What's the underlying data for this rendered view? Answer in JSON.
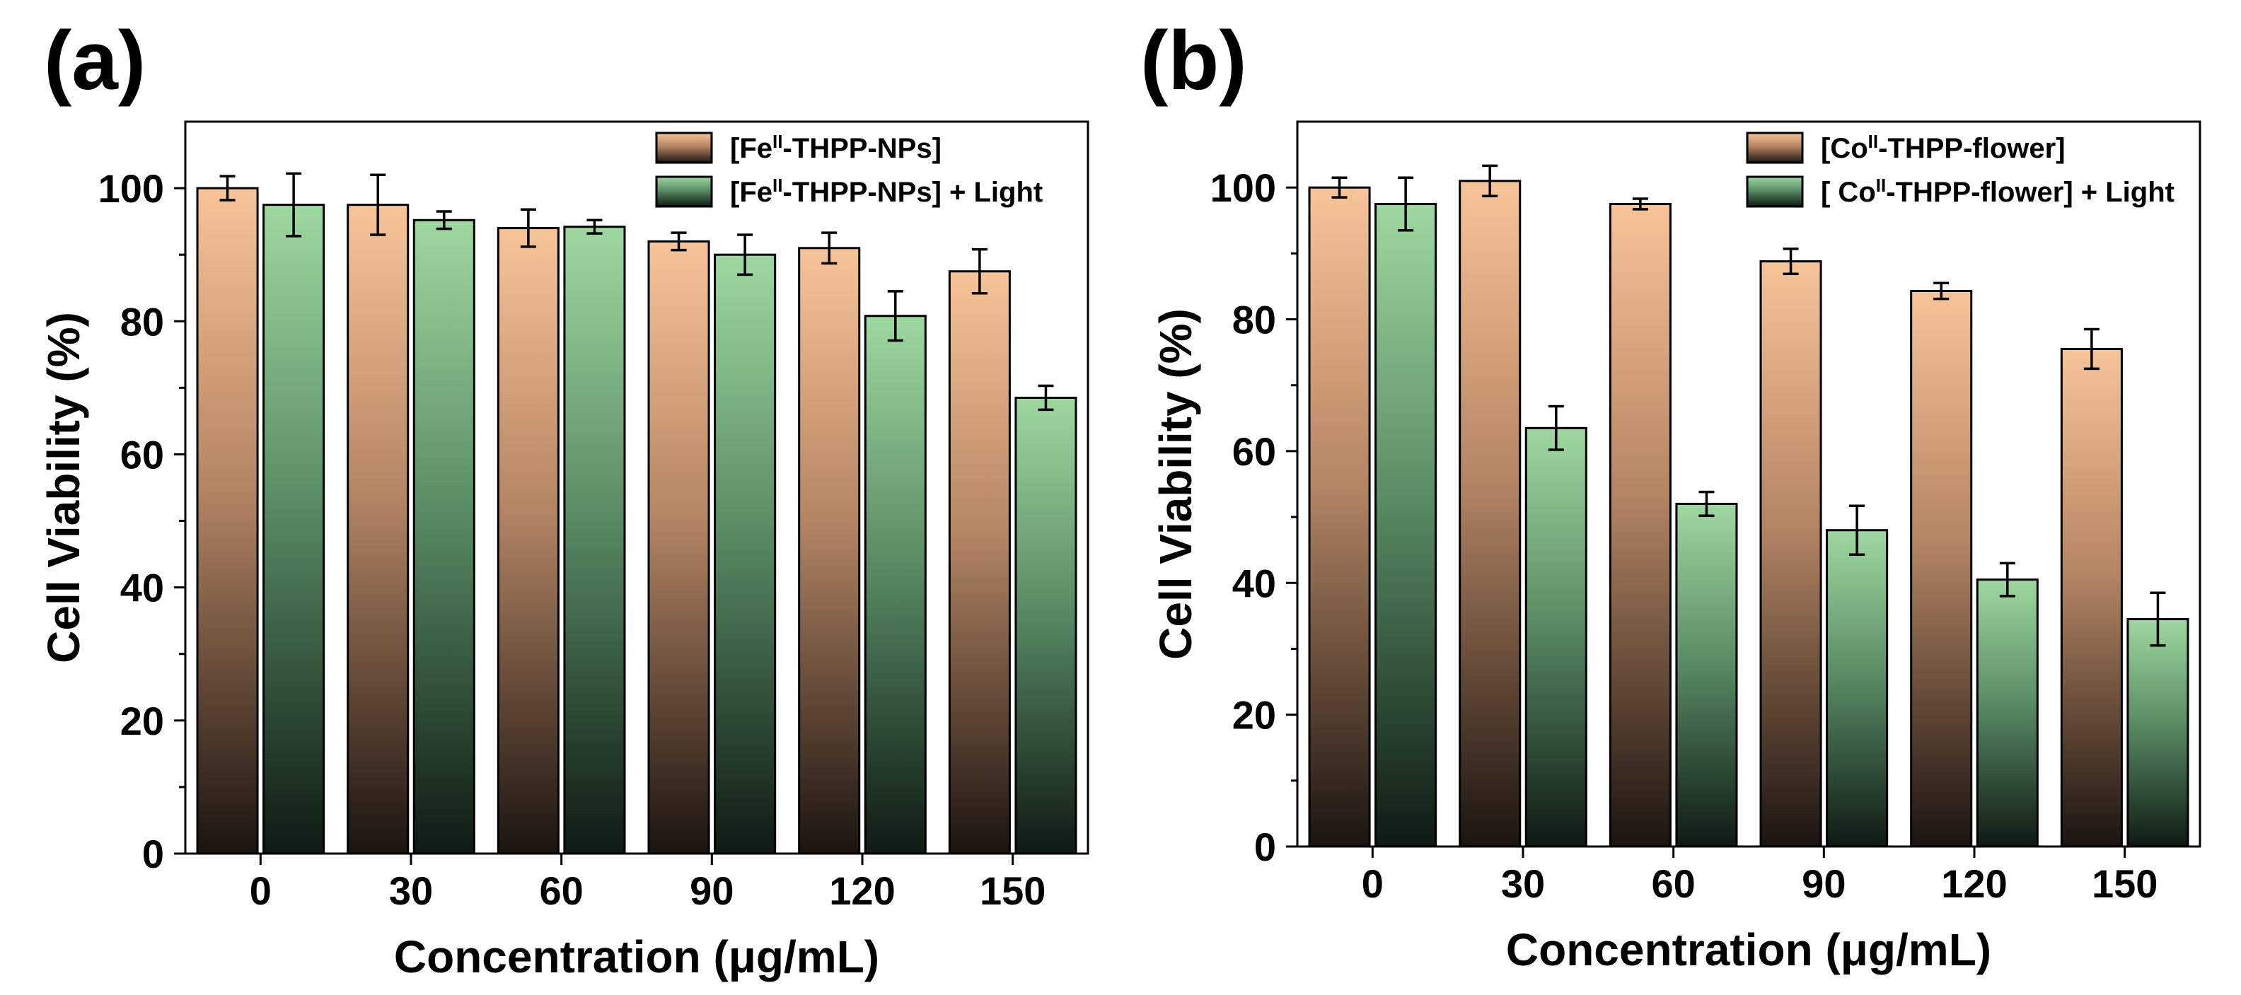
{
  "chart_data": [
    {
      "panel_label": "(a)",
      "type": "bar",
      "categories": [
        "0",
        "30",
        "60",
        "90",
        "120",
        "150"
      ],
      "xlabel": "Concentration (μg/mL)",
      "ylabel": "Cell Viability (%)",
      "ylim": [
        0,
        110
      ],
      "yticks": [
        0,
        20,
        40,
        60,
        80,
        100
      ],
      "legend_position": "top-right",
      "series": [
        {
          "name": "[Feᴵᴵ-THPP-NPs]",
          "legend_base": "[Fe",
          "legend_sup": "II",
          "legend_rest": "-THPP-NPs]",
          "color_top": "#f7c499",
          "color_bottom": "#1a1410",
          "values": [
            100,
            97.5,
            94,
            92,
            91,
            87.5
          ],
          "errors": [
            1.8,
            4.5,
            2.8,
            1.3,
            2.3,
            3.3
          ]
        },
        {
          "name": "[Feᴵᴵ-THPP-NPs] + Light",
          "legend_base": "[Fe",
          "legend_sup": "II",
          "legend_rest": "-THPP-NPs] + Light",
          "color_top": "#9ed8a0",
          "color_bottom": "#0e1a12",
          "values": [
            97.5,
            95.2,
            94.2,
            90,
            80.8,
            68.5
          ],
          "errors": [
            4.7,
            1.3,
            1.0,
            3.0,
            3.7,
            1.8
          ]
        }
      ]
    },
    {
      "panel_label": "(b)",
      "type": "bar",
      "categories": [
        "0",
        "30",
        "60",
        "90",
        "120",
        "150"
      ],
      "xlabel": "Concentration (μg/mL)",
      "ylabel": "Cell Viability (%)",
      "ylim": [
        0,
        110
      ],
      "yticks": [
        0,
        20,
        40,
        60,
        80,
        100
      ],
      "legend_position": "top-right",
      "series": [
        {
          "name": "[Coᴵᴵ-THPP-flower]",
          "legend_base": "[Co",
          "legend_sup": "II",
          "legend_rest": "-THPP-flower]",
          "color_top": "#f7c499",
          "color_bottom": "#1a1410",
          "values": [
            100,
            101,
            97.5,
            88.8,
            84.3,
            75.5
          ],
          "errors": [
            1.5,
            2.3,
            0.8,
            1.9,
            1.2,
            3.0
          ]
        },
        {
          "name": "[ Coᴵᴵ-THPP-flower] + Light",
          "legend_base": "[ Co",
          "legend_sup": "II",
          "legend_rest": "-THPP-flower] + Light",
          "color_top": "#9ed8a0",
          "color_bottom": "#0e1a12",
          "values": [
            97.5,
            63.5,
            52,
            48,
            40.5,
            34.5
          ],
          "errors": [
            4.0,
            3.3,
            1.8,
            3.7,
            2.5,
            4.0
          ]
        }
      ]
    }
  ]
}
